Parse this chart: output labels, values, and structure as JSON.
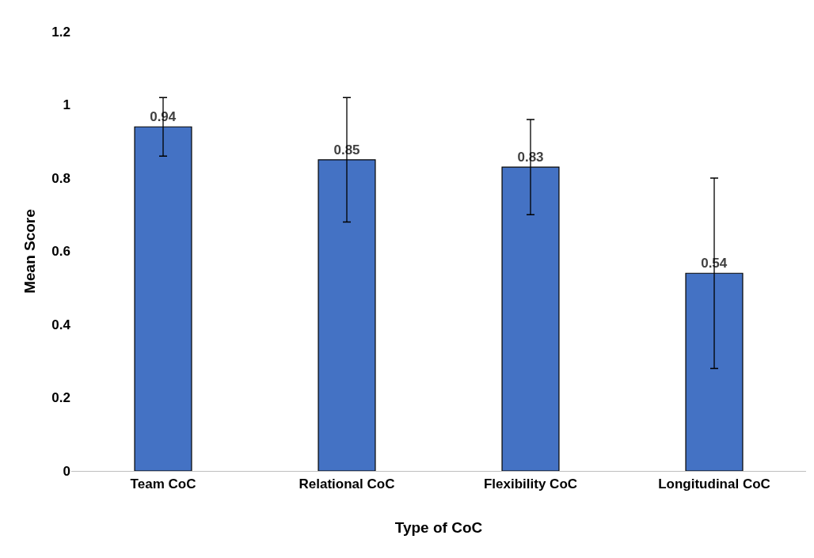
{
  "chart_data": {
    "type": "bar",
    "xlabel": "Type of CoC",
    "ylabel": "Mean Score",
    "categories": [
      "Team CoC",
      "Relational CoC",
      "Flexibility CoC",
      "Longitudinal CoC"
    ],
    "values": [
      0.94,
      0.85,
      0.83,
      0.54
    ],
    "errors": [
      0.08,
      0.17,
      0.13,
      0.26
    ],
    "color": "#4472c4",
    "data_labels": true,
    "legend": false,
    "ylim": [
      0,
      1.2
    ],
    "yticks": [
      0,
      0.2,
      0.4,
      0.6,
      0.8,
      1,
      1.2
    ]
  }
}
